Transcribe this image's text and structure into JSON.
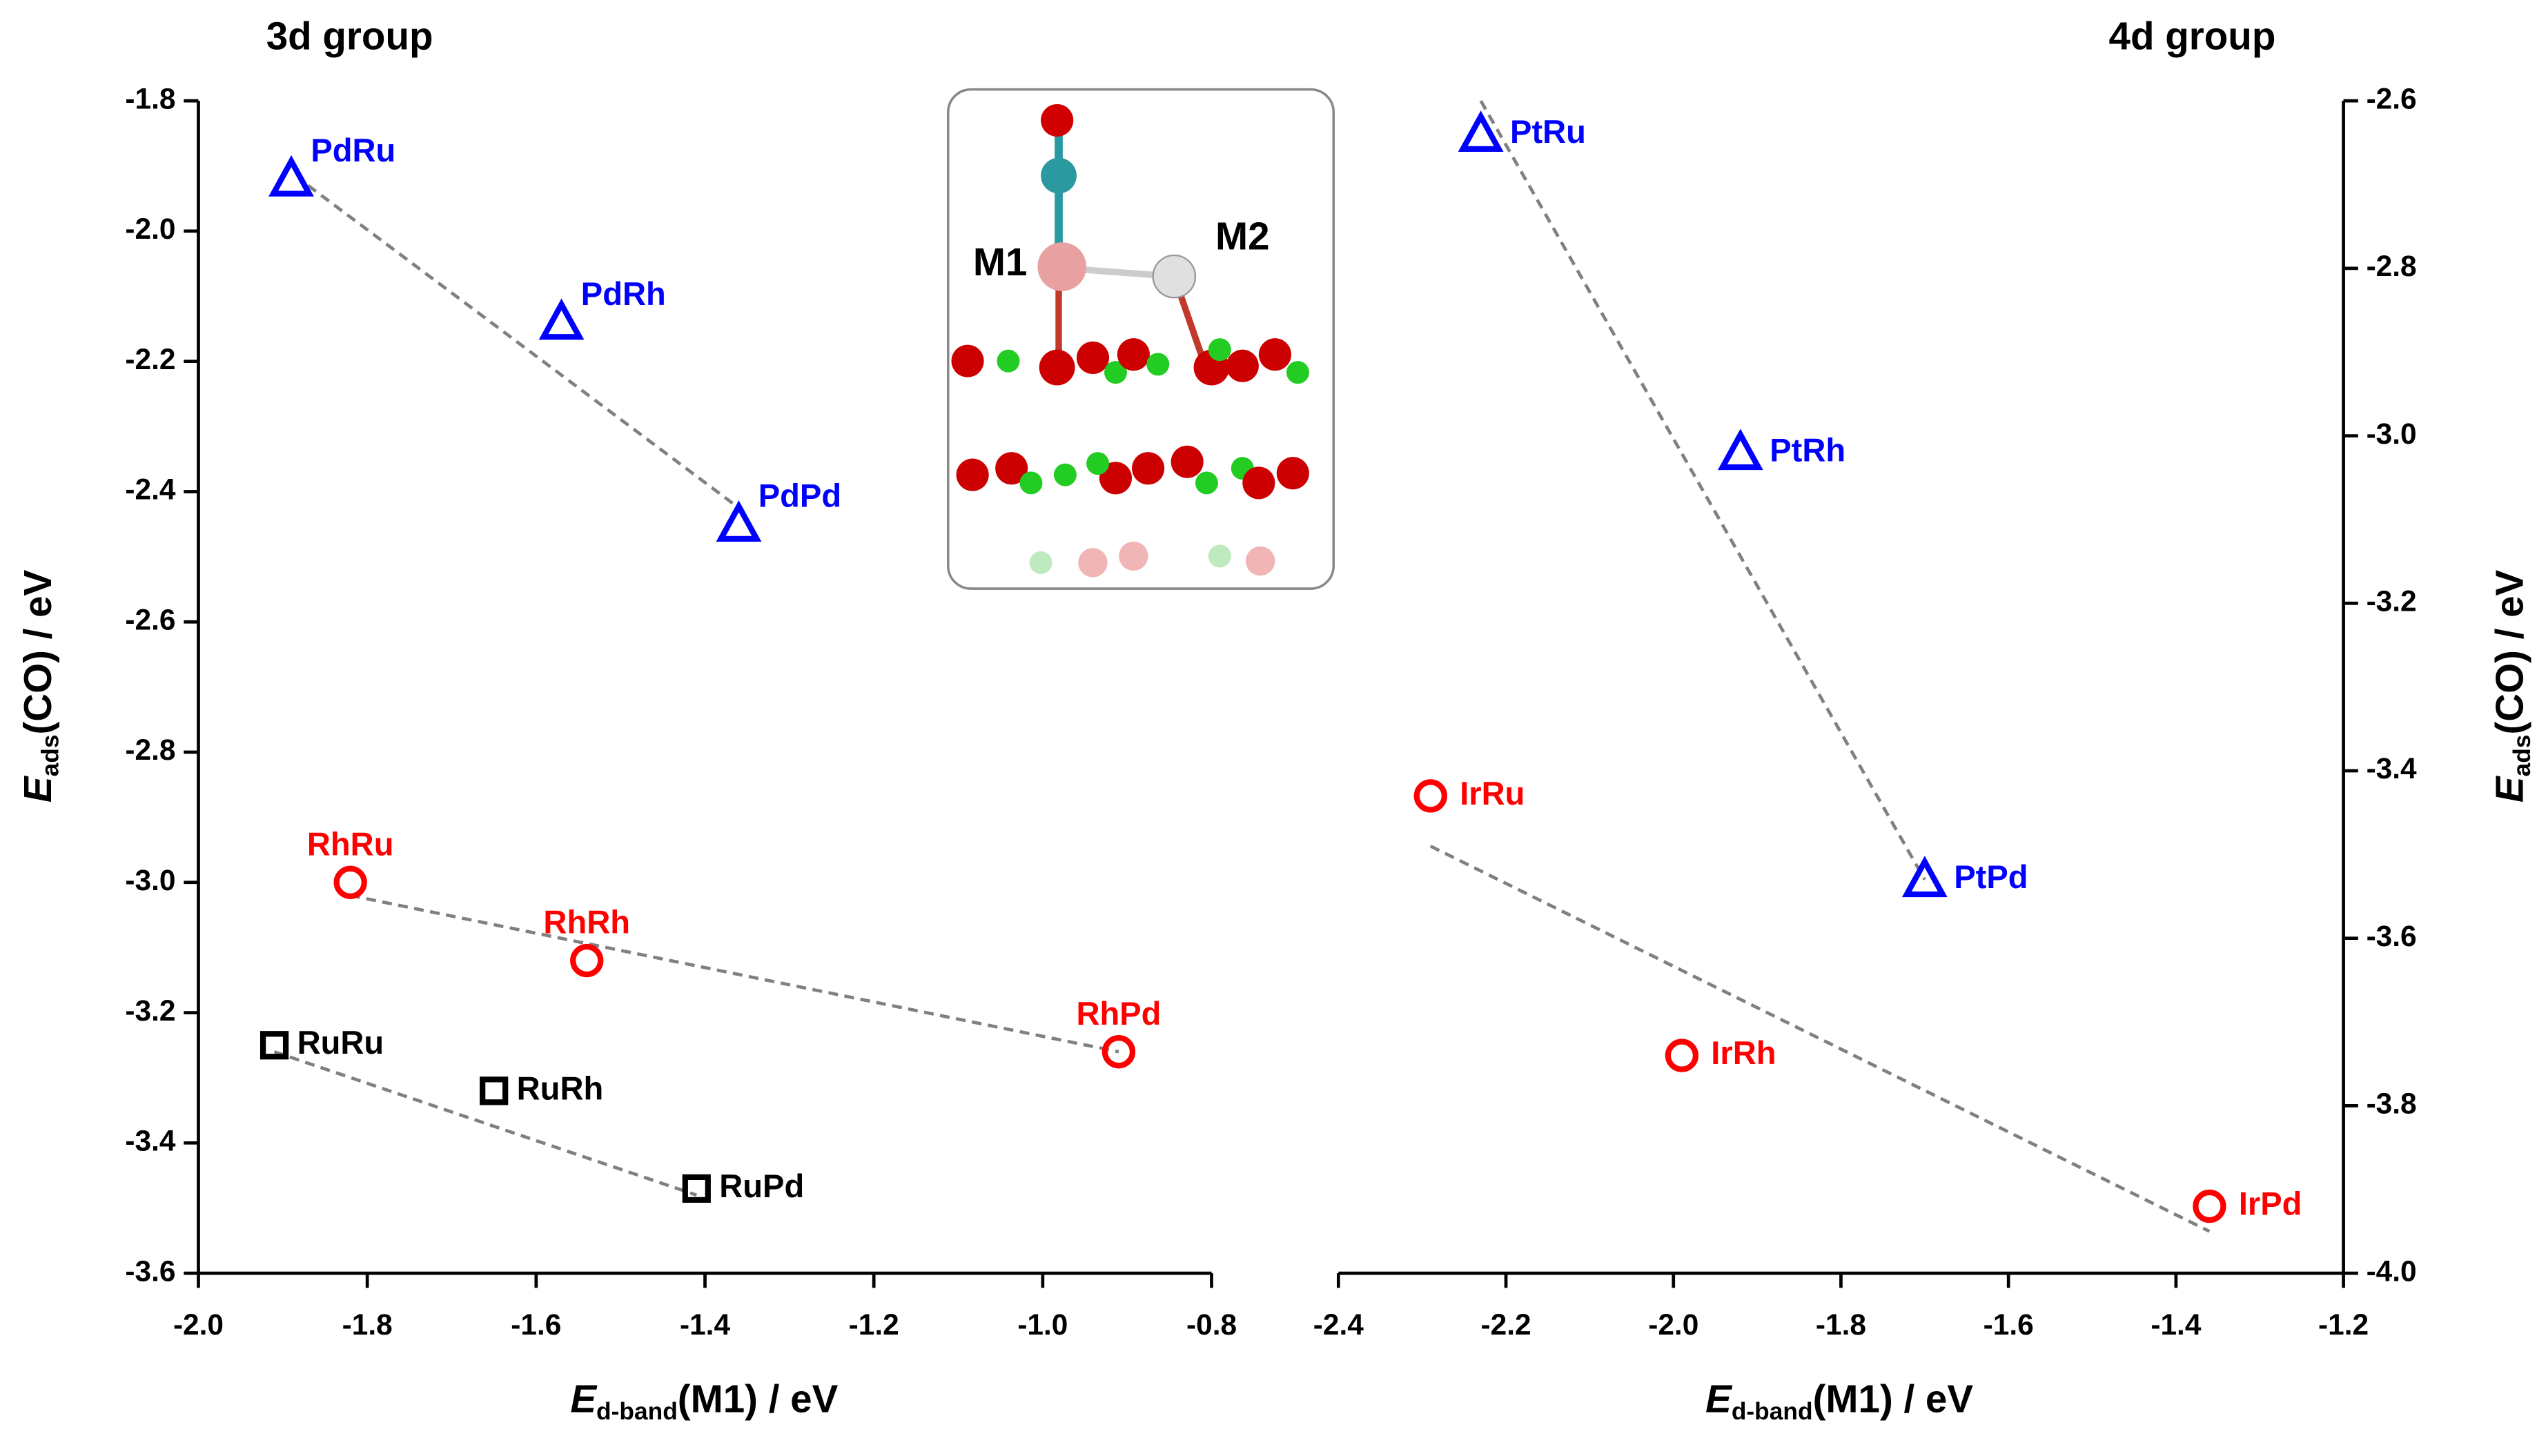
{
  "chart_data": [
    {
      "type": "scatter",
      "title": "3d group",
      "x_label": {
        "main": "E",
        "sub": "d-band",
        "rest": "(M1) / eV"
      },
      "y_label": {
        "main": "E",
        "sub": "ads",
        "rest": "(CO) / eV"
      },
      "xlim": [
        -2.0,
        -0.8
      ],
      "xticks": [
        {
          "value": -2,
          "label": "-2.0"
        },
        -1.8,
        -1.6,
        -1.4,
        -1.2,
        {
          "value": -1,
          "label": "-1.0"
        },
        -0.8
      ],
      "ylim": [
        -3.6,
        -1.8
      ],
      "yticks": [
        -1.8,
        {
          "value": -2,
          "label": "-2.0"
        },
        -2.2,
        -2.4,
        -2.6,
        -2.8,
        {
          "value": -3,
          "label": "-3.0"
        },
        -3.2,
        -3.4,
        -3.6
      ],
      "y_axis_side": "left",
      "series": [
        {
          "marker": "triangle",
          "color": "#0000ff",
          "labels": [
            "PdRu",
            "PdRh",
            "PdPd"
          ],
          "x": [
            -1.89,
            -1.57,
            -1.36
          ],
          "values": [
            -1.92,
            -2.14,
            -2.45
          ]
        },
        {
          "marker": "circle",
          "color": "#ff0000",
          "labels": [
            "RhRu",
            "RhRh",
            "RhPd"
          ],
          "x": [
            -1.82,
            -1.54,
            -0.91
          ],
          "values": [
            -3.0,
            -3.12,
            -3.26
          ]
        },
        {
          "marker": "square",
          "color": "#000000",
          "labels": [
            "RuRu",
            "RuRh",
            "RuPd"
          ],
          "x": [
            -1.91,
            -1.65,
            -1.41
          ],
          "values": [
            -3.25,
            -3.32,
            -3.47
          ]
        }
      ],
      "fit_lines": [
        {
          "color": "#808080",
          "x": [
            -1.87,
            -1.365
          ],
          "values": [
            -1.93,
            -2.42
          ]
        },
        {
          "color": "#808080",
          "x": [
            -1.82,
            -0.91
          ],
          "values": [
            -3.02,
            -3.26
          ]
        },
        {
          "color": "#808080",
          "x": [
            -1.91,
            -1.41
          ],
          "values": [
            -3.26,
            -3.48
          ]
        }
      ]
    },
    {
      "type": "scatter",
      "title": "4d group",
      "x_label": {
        "main": "E",
        "sub": "d-band",
        "rest": "(M1) / eV"
      },
      "y_label": {
        "main": "E",
        "sub": "ads",
        "rest": "(CO) / eV"
      },
      "xlim": [
        -2.4,
        -1.2
      ],
      "xticks": [
        -2.4,
        -2.2,
        {
          "value": -2,
          "label": "-2.0"
        },
        -1.8,
        -1.6,
        -1.4,
        -1.2
      ],
      "ylim": [
        -4.0,
        -2.6
      ],
      "yticks": [
        -2.6,
        -2.8,
        {
          "value": -3,
          "label": "-3.0"
        },
        -3.2,
        -3.4,
        -3.6,
        -3.8,
        {
          "value": -4,
          "label": "-4.0"
        }
      ],
      "y_axis_side": "right",
      "series": [
        {
          "marker": "triangle",
          "color": "#0000ff",
          "labels": [
            "PtRu",
            "PtRh",
            "PtPd"
          ],
          "x": [
            -2.23,
            -1.92,
            -1.7
          ],
          "values": [
            -2.64,
            -3.02,
            -3.53
          ]
        },
        {
          "marker": "circle",
          "color": "#ff0000",
          "labels": [
            "IrRu",
            "IrRh",
            "IrPd"
          ],
          "x": [
            -2.29,
            -1.99,
            -1.36
          ],
          "values": [
            -3.43,
            -3.74,
            -3.92
          ]
        }
      ],
      "fit_lines": [
        {
          "color": "#808080",
          "x": [
            -2.23,
            -1.7
          ],
          "values": [
            -2.6,
            -3.53
          ]
        },
        {
          "color": "#808080",
          "x": [
            -2.29,
            -1.36
          ],
          "values": [
            -3.49,
            -3.95
          ]
        }
      ]
    }
  ],
  "inset_labels": [
    "M1",
    "M2"
  ]
}
